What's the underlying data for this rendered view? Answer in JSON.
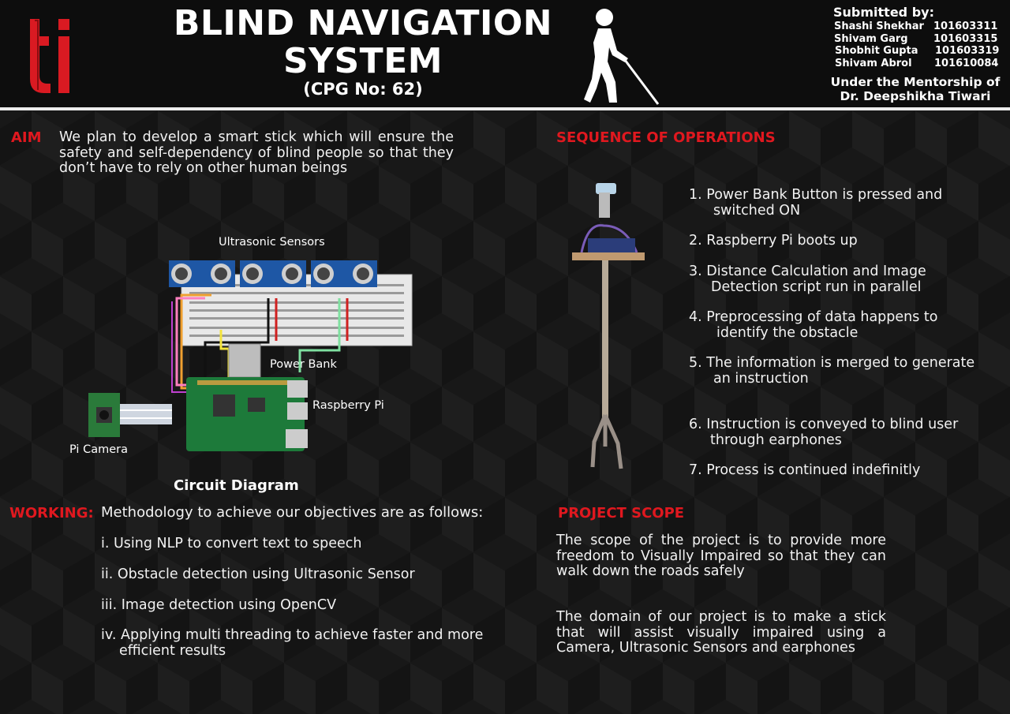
{
  "header": {
    "logo_text": "ti",
    "title_line1": "BLIND NAVIGATION",
    "title_line2": "SYSTEM",
    "cpg": "(CPG No: 62)",
    "submitted_by_label": "Submitted by:",
    "members": [
      {
        "name": "Shashi Shekhar",
        "id": "101603311"
      },
      {
        "name": "Shivam Garg",
        "id": "101603315"
      },
      {
        "name": "Shobhit Gupta",
        "id": "101603319"
      },
      {
        "name": "Shivam Abrol",
        "id": "101610084"
      }
    ],
    "mentor_label": "Under the Mentorship of",
    "mentor_name": "Dr. Deepshikha Tiwari"
  },
  "aim": {
    "heading": "AIM",
    "text": "We plan to develop a smart stick which will ensure the safety and self-dependency of blind people so that they don’t have to rely on other human beings"
  },
  "circuit": {
    "labels": {
      "ultrasonic": "Ultrasonic Sensors",
      "power_bank": "Power Bank",
      "raspberry_pi": "Raspberry Pi",
      "pi_camera": "Pi Camera"
    },
    "caption": "Circuit Diagram"
  },
  "working": {
    "heading": "WORKING:",
    "intro": "Methodology to achieve our objectives are as follows:",
    "items": [
      "i.  Using NLP to convert text to speech",
      "ii.  Obstacle detection using Ultrasonic Sensor",
      "iii. Image detection using OpenCV",
      "iv. Applying multi threading to achieve faster and more",
      "efficient  results"
    ]
  },
  "sequence": {
    "heading": "SEQUENCE OF OPERATIONS",
    "steps": [
      {
        "l1": "1.  Power Bank Button is pressed and",
        "l2": "switched ON"
      },
      {
        "l1": "2.  Raspberry Pi boots up",
        "l2": ""
      },
      {
        "l1": "3.  Distance Calculation  and Image",
        "l2": "Detection script run in parallel"
      },
      {
        "l1": "4.  Preprocessing  of  data  happens  to",
        "l2": "identify the obstacle"
      },
      {
        "l1": "5.  The information is merged to generate",
        "l2": "an instruction"
      },
      {
        "l1": "6.  Instruction  is  conveyed  to  blind  user",
        "l2": "through  earphones"
      },
      {
        "l1": "7.  Process is continued indefinitly",
        "l2": ""
      }
    ]
  },
  "scope": {
    "heading": "PROJECT SCOPE",
    "para1": "The scope of the project is to provide more freedom to Visually Impaired so that they can walk down the roads safely",
    "para2": "The domain of our project is to make a stick that will assist visually impaired using a Camera, Ultrasonic Sensors and earphones"
  },
  "colors": {
    "accent": "#e0181f",
    "background": "#141414"
  }
}
